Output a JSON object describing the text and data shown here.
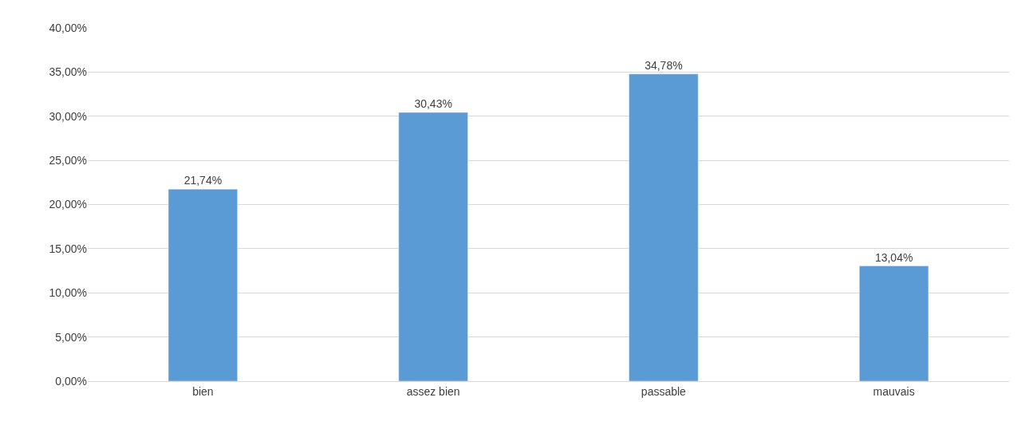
{
  "chart_data": {
    "type": "bar",
    "categories": [
      "bien",
      "assez bien",
      "passable",
      "mauvais"
    ],
    "values": [
      21.74,
      30.43,
      34.78,
      13.04
    ],
    "color": "#5b9bd5",
    "value_labels": [
      "21,74%",
      "30,43%",
      "34,78%",
      "13,04%"
    ],
    "ylim": [
      0,
      40
    ],
    "yticks": [
      {
        "value": 0,
        "label": "0,00%"
      },
      {
        "value": 5,
        "label": "5,00%"
      },
      {
        "value": 10,
        "label": "10,00%"
      },
      {
        "value": 15,
        "label": "15,00%"
      },
      {
        "value": 20,
        "label": "20,00%"
      },
      {
        "value": 25,
        "label": "25,00%"
      },
      {
        "value": 30,
        "label": "30,00%"
      },
      {
        "value": 35,
        "label": "35,00%"
      },
      {
        "value": 40,
        "label": "40,00%"
      }
    ],
    "grid": "y"
  }
}
